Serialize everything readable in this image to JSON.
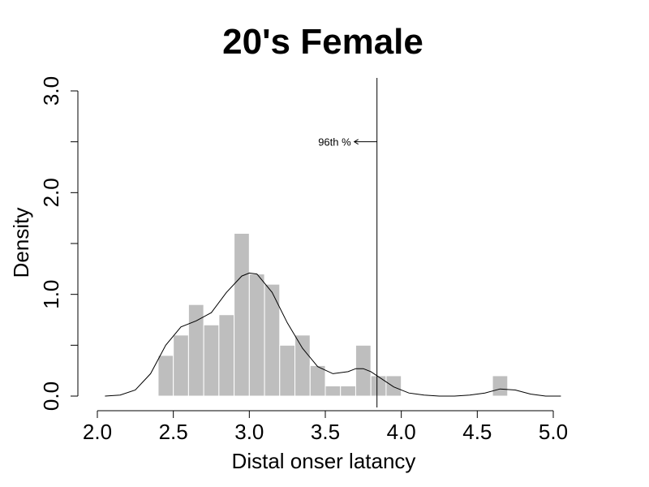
{
  "chart_data": {
    "type": "bar",
    "title": "20's Female",
    "xlabel": "Distal onser latancy",
    "ylabel": "Density",
    "xlim": [
      2.0,
      5.0
    ],
    "ylim": [
      0.0,
      3.0
    ],
    "xticks": [
      "2.0",
      "2.5",
      "3.0",
      "3.5",
      "4.0",
      "4.5",
      "5.0"
    ],
    "yticks": [
      "0.0",
      "1.0",
      "2.0",
      "3.0"
    ],
    "bin_width": 0.1,
    "bins": [
      {
        "x0": 2.4,
        "x1": 2.5,
        "density": 0.4
      },
      {
        "x0": 2.5,
        "x1": 2.6,
        "density": 0.6
      },
      {
        "x0": 2.6,
        "x1": 2.7,
        "density": 0.9
      },
      {
        "x0": 2.7,
        "x1": 2.8,
        "density": 0.7
      },
      {
        "x0": 2.8,
        "x1": 2.9,
        "density": 0.8
      },
      {
        "x0": 2.9,
        "x1": 3.0,
        "density": 1.6
      },
      {
        "x0": 3.0,
        "x1": 3.1,
        "density": 1.2
      },
      {
        "x0": 3.1,
        "x1": 3.2,
        "density": 1.1
      },
      {
        "x0": 3.2,
        "x1": 3.3,
        "density": 0.5
      },
      {
        "x0": 3.3,
        "x1": 3.4,
        "density": 0.6
      },
      {
        "x0": 3.4,
        "x1": 3.5,
        "density": 0.3
      },
      {
        "x0": 3.5,
        "x1": 3.6,
        "density": 0.1
      },
      {
        "x0": 3.6,
        "x1": 3.7,
        "density": 0.1
      },
      {
        "x0": 3.7,
        "x1": 3.8,
        "density": 0.5
      },
      {
        "x0": 3.8,
        "x1": 3.9,
        "density": 0.2
      },
      {
        "x0": 3.9,
        "x1": 4.0,
        "density": 0.2
      },
      {
        "x0": 4.6,
        "x1": 4.7,
        "density": 0.2
      }
    ],
    "density_curve": {
      "x": [
        2.05,
        2.15,
        2.25,
        2.35,
        2.45,
        2.55,
        2.65,
        2.75,
        2.85,
        2.95,
        3.0,
        3.05,
        3.15,
        3.25,
        3.35,
        3.45,
        3.55,
        3.65,
        3.7,
        3.75,
        3.8,
        3.85,
        3.95,
        4.05,
        4.15,
        4.25,
        4.35,
        4.45,
        4.55,
        4.65,
        4.75,
        4.85,
        4.95,
        5.05
      ],
      "y": [
        0.0,
        0.01,
        0.06,
        0.22,
        0.5,
        0.68,
        0.74,
        0.82,
        1.02,
        1.18,
        1.21,
        1.2,
        1.02,
        0.72,
        0.47,
        0.29,
        0.22,
        0.24,
        0.27,
        0.27,
        0.24,
        0.19,
        0.09,
        0.03,
        0.01,
        0.0,
        0.0,
        0.01,
        0.03,
        0.07,
        0.06,
        0.02,
        0.0,
        0.0
      ]
    },
    "reference_line": {
      "x": 3.84,
      "label": "96th %",
      "label_y": 2.5
    },
    "bar_color": "#bebebe",
    "bar_edge_color": "#ffffff",
    "line_color": "#000000",
    "grid": false,
    "legend": "none"
  }
}
